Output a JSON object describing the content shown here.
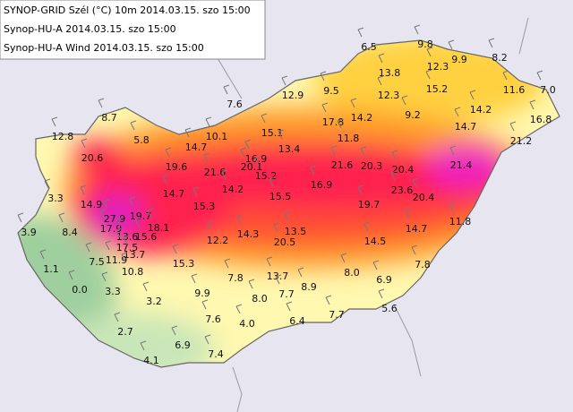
{
  "legend": {
    "lines": [
      "SYNOP-GRID Szél (°C) 10m 2014.03.15. szo 15:00",
      "Synop-HU-A 2014.03.15. szo 15:00",
      "Synop-HU-A Wind 2014.03.15. szo 15:00"
    ]
  },
  "stations": [
    "6.5",
    "9.8",
    "8.2",
    "13.8",
    "12.3",
    "9.9",
    "12.9",
    "9.5",
    "12.3",
    "15.2",
    "11.6",
    "7.0",
    "8.7",
    "7.6",
    "17.8",
    "14.2",
    "9.2",
    "14.2",
    "16.8",
    "12.8",
    "5.8",
    "10.1",
    "15.1",
    "11.8",
    "14.7",
    "21.2",
    "14.7",
    "13.4",
    "20.6",
    "16.9",
    "20.1",
    "19.6",
    "21.6",
    "15.2",
    "21.6",
    "20.3",
    "20.4",
    "21.4",
    "14.2",
    "16.9",
    "23.6",
    "20.4",
    "14.7",
    "15.3",
    "15.5",
    "19.7",
    "3.3",
    "14.9",
    "27.9",
    "19.7",
    "11.8",
    "17.9",
    "18.1",
    "14.7",
    "3.9",
    "8.4",
    "13.6",
    "15.6",
    "12.2",
    "14.3",
    "13.5",
    "14.5",
    "20.5",
    "17.5",
    "7.5",
    "11.9",
    "13.7",
    "10.8",
    "15.3",
    "7.8",
    "1.1",
    "8.0",
    "7.8",
    "13.7",
    "6.9",
    "0.0",
    "3.3",
    "9.9",
    "8.0",
    "7.7",
    "8.9",
    "3.2",
    "5.6",
    "7.6",
    "4.0",
    "6.4",
    "7.7",
    "2.7",
    "6.9",
    "7.4",
    "4.1"
  ]
}
